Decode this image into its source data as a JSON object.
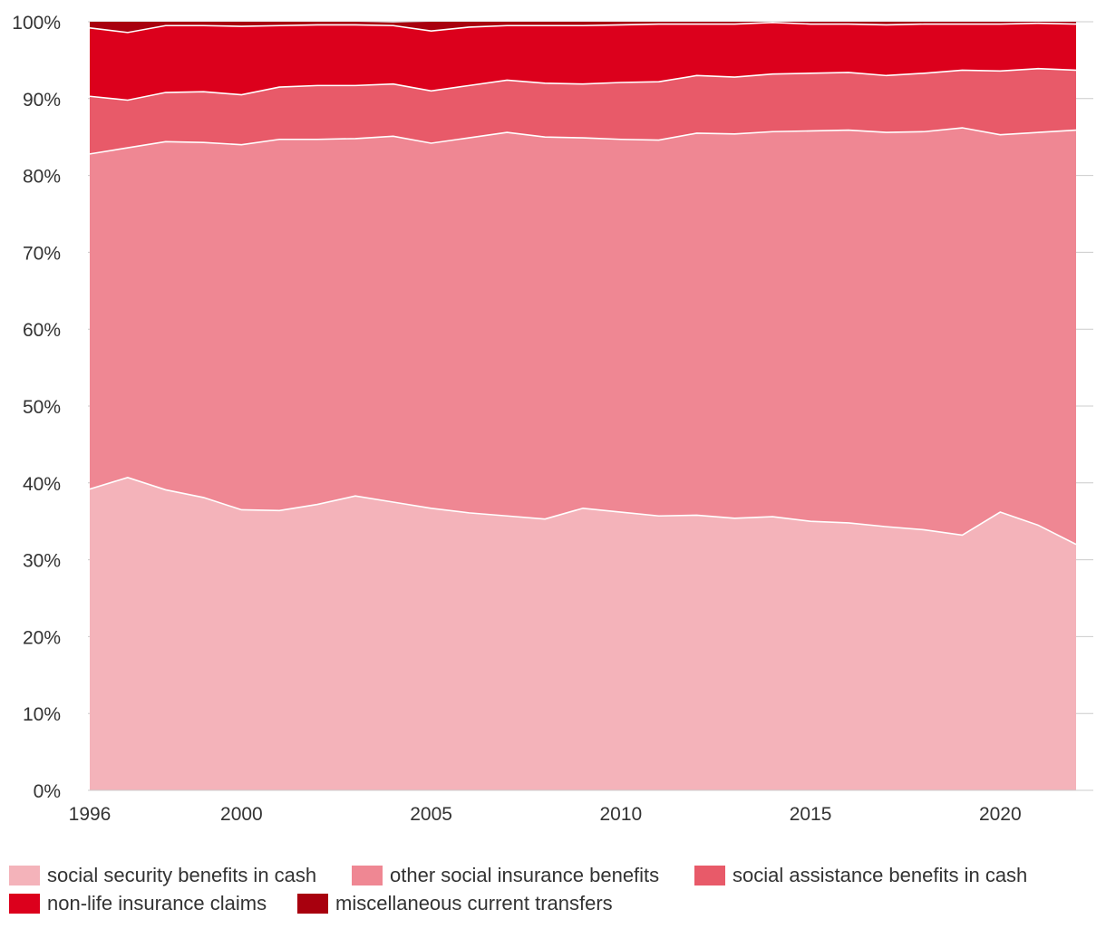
{
  "chart_data": {
    "type": "area",
    "stacked": true,
    "normalized": true,
    "title": "",
    "xlabel": "",
    "ylabel": "",
    "x": [
      1996,
      1997,
      1998,
      1999,
      2000,
      2001,
      2002,
      2003,
      2004,
      2005,
      2006,
      2007,
      2008,
      2009,
      2010,
      2011,
      2012,
      2013,
      2014,
      2015,
      2016,
      2017,
      2018,
      2019,
      2020,
      2021,
      2022
    ],
    "x_ticks": [
      {
        "value": 1996,
        "label": "1996"
      },
      {
        "value": 2000,
        "label": "2000"
      },
      {
        "value": 2005,
        "label": "2005"
      },
      {
        "value": 2010,
        "label": "2010"
      },
      {
        "value": 2015,
        "label": "2015"
      },
      {
        "value": 2020,
        "label": "2020"
      }
    ],
    "y_ticks": [
      {
        "value": 0,
        "label": "0%"
      },
      {
        "value": 10,
        "label": "10%"
      },
      {
        "value": 20,
        "label": "20%"
      },
      {
        "value": 30,
        "label": "30%"
      },
      {
        "value": 40,
        "label": "40%"
      },
      {
        "value": 50,
        "label": "50%"
      },
      {
        "value": 60,
        "label": "60%"
      },
      {
        "value": 70,
        "label": "70%"
      },
      {
        "value": 80,
        "label": "80%"
      },
      {
        "value": 90,
        "label": "90%"
      },
      {
        "value": 100,
        "label": "100%"
      }
    ],
    "xlim": [
      1996,
      2022
    ],
    "ylim": [
      0,
      100
    ],
    "grid": "horizontal",
    "legend_position": "bottom",
    "series": [
      {
        "name": "social security benefits in cash",
        "color": "#f4b3ba",
        "values": [
          39.2,
          40.7,
          39.1,
          38.1,
          36.5,
          36.4,
          37.2,
          38.3,
          37.5,
          36.7,
          36.1,
          35.7,
          35.3,
          36.7,
          36.2,
          35.7,
          35.8,
          35.4,
          35.6,
          35.0,
          34.8,
          34.3,
          33.9,
          33.2,
          36.2,
          34.5,
          32.0
        ]
      },
      {
        "name": "other social insurance benefits",
        "color": "#ef8793",
        "values": [
          43.6,
          42.9,
          45.3,
          46.2,
          47.5,
          48.3,
          47.5,
          46.5,
          47.6,
          47.5,
          48.8,
          49.9,
          49.7,
          48.2,
          48.5,
          48.9,
          49.7,
          50.0,
          50.1,
          50.8,
          51.1,
          51.3,
          51.8,
          53.0,
          49.1,
          51.1,
          53.9
        ]
      },
      {
        "name": "social assistance benefits in cash",
        "color": "#e85a69",
        "values": [
          7.5,
          6.2,
          6.4,
          6.6,
          6.5,
          6.8,
          7.0,
          6.9,
          6.8,
          6.8,
          6.8,
          6.8,
          7.0,
          7.0,
          7.4,
          7.6,
          7.5,
          7.4,
          7.5,
          7.5,
          7.5,
          7.4,
          7.6,
          7.5,
          8.3,
          8.3,
          7.8
        ]
      },
      {
        "name": "non-life insurance claims",
        "color": "#dc001c",
        "values": [
          8.9,
          8.8,
          8.7,
          8.6,
          8.9,
          8.0,
          7.9,
          7.9,
          7.6,
          7.8,
          7.6,
          7.1,
          7.5,
          7.6,
          7.5,
          7.5,
          6.7,
          6.9,
          6.7,
          6.4,
          6.3,
          6.6,
          6.4,
          6.0,
          6.1,
          5.9,
          6.0
        ]
      },
      {
        "name": "miscellaneous current transfers",
        "color": "#a8000e",
        "values": [
          0.8,
          1.4,
          0.5,
          0.5,
          0.6,
          0.5,
          0.4,
          0.4,
          0.4,
          1.2,
          0.7,
          0.5,
          0.5,
          0.5,
          0.5,
          0.3,
          0.3,
          0.3,
          0.1,
          0.3,
          0.3,
          0.4,
          0.3,
          0.3,
          0.3,
          0.2,
          0.3
        ]
      }
    ]
  }
}
